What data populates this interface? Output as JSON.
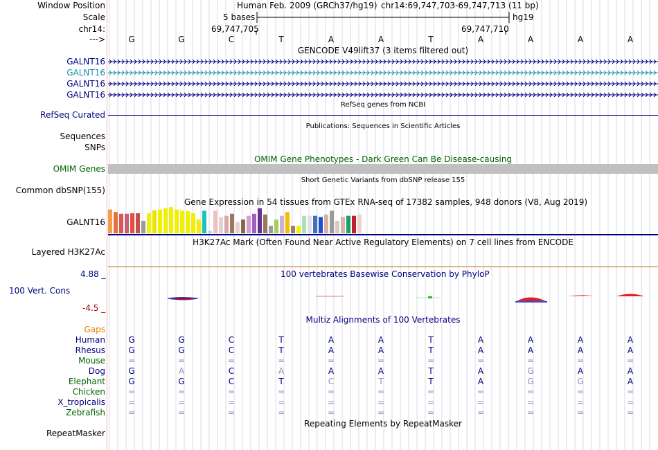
{
  "header": {
    "window_position_label": "Window Position",
    "scale_label": "Scale",
    "chrom_label": "chr14:",
    "arrow_label": "--->",
    "assembly_title": "Human Feb. 2009 (GRCh37/hg19)",
    "region": "chr14:69,747,703-69,747,713 (11 bp)",
    "scale_text": "5 bases",
    "scale_db": "hg19",
    "coord_left": "69,747,705",
    "coord_right": "69,747,710",
    "bases": [
      "G",
      "G",
      "C",
      "T",
      "A",
      "A",
      "T",
      "A",
      "A",
      "A",
      "A"
    ]
  },
  "tracks": {
    "gencode_title": "GENCODE V49lift37 (3 items filtered out)",
    "gencode_items": [
      {
        "label": "GALNT16",
        "color": "#000080"
      },
      {
        "label": "GALNT16",
        "color": "#1a8fb0"
      },
      {
        "label": "GALNT16",
        "color": "#000080"
      },
      {
        "label": "GALNT16",
        "color": "#000080"
      }
    ],
    "refseq_title": "RefSeq genes from NCBI",
    "refseq_label": "RefSeq Curated",
    "publications_title": "Publications: Sequences in Scientific Articles",
    "sequences_label": "Sequences",
    "snps_label": "SNPs",
    "omim_title": "OMIM Gene Phenotypes - Dark Green Can Be Disease-causing",
    "omim_label": "OMIM Genes",
    "dbsnp_title": "Short Genetic Variants from dbSNP release 155",
    "dbsnp_label": "Common dbSNP(155)",
    "gtex_title": "Gene Expression in 54 tissues from GTEx RNA-seq of 17382 samples, 948 donors (V8, Aug 2019)",
    "gtex_label": "GALNT16",
    "h3k27_title": "H3K27Ac Mark (Often Found Near Active Regulatory Elements) on 7 cell lines from ENCODE",
    "h3k27_label": "Layered H3K27Ac",
    "phylop_title": "100 vertebrates Basewise Conservation by PhyloP",
    "phylop_label": "100 Vert. Cons",
    "phylop_max": "4.88 _",
    "phylop_min": "-4.5 _",
    "multiz_title": "Multiz Alignments of 100 Vertebrates",
    "gaps_label": "Gaps",
    "repeat_title": "Repeating Elements by RepeatMasker",
    "repeat_label": "RepeatMasker"
  },
  "gtex_bars": [
    {
      "c": "#f39c4a",
      "v": 0.95
    },
    {
      "c": "#e8703a",
      "v": 0.85
    },
    {
      "c": "#d35a5a",
      "v": 0.78
    },
    {
      "c": "#c85f7d",
      "v": 0.78
    },
    {
      "c": "#e0503c",
      "v": 0.8
    },
    {
      "c": "#c94c4c",
      "v": 0.8
    },
    {
      "c": "#9a9a9a",
      "v": 0.5
    },
    {
      "c": "#f0f000",
      "v": 0.8
    },
    {
      "c": "#e6e600",
      "v": 0.92
    },
    {
      "c": "#f0f000",
      "v": 0.95
    },
    {
      "c": "#f0f000",
      "v": 1.0
    },
    {
      "c": "#f0f000",
      "v": 1.05
    },
    {
      "c": "#f0f000",
      "v": 0.95
    },
    {
      "c": "#f0f000",
      "v": 0.9
    },
    {
      "c": "#f0f000",
      "v": 0.88
    },
    {
      "c": "#f0f000",
      "v": 0.8
    },
    {
      "c": "#f0f000",
      "v": 0.55
    },
    {
      "c": "#20c0c0",
      "v": 0.9
    },
    {
      "c": "#b0d8f0",
      "v": 0.1
    },
    {
      "c": "#f0c0c0",
      "v": 0.9
    },
    {
      "c": "#e8d0d0",
      "v": 0.65
    },
    {
      "c": "#d8a8a8",
      "v": 0.7
    },
    {
      "c": "#9a7860",
      "v": 0.78
    },
    {
      "c": "#e8d0d0",
      "v": 0.45
    },
    {
      "c": "#8a6850",
      "v": 0.55
    },
    {
      "c": "#d0a0d0",
      "v": 0.7
    },
    {
      "c": "#a060c0",
      "v": 0.78
    },
    {
      "c": "#6a3090",
      "v": 1.0
    },
    {
      "c": "#9a7860",
      "v": 0.75
    },
    {
      "c": "#9a9a9a",
      "v": 0.3
    },
    {
      "c": "#a0d060",
      "v": 0.55
    },
    {
      "c": "#d0b0d0",
      "v": 0.7
    },
    {
      "c": "#f0c000",
      "v": 0.85
    },
    {
      "c": "#a08060",
      "v": 0.3
    },
    {
      "c": "#f0f000",
      "v": 0.3
    },
    {
      "c": "#b0e0b0",
      "v": 0.7
    },
    {
      "c": "#e0e0e0",
      "v": 0.7
    },
    {
      "c": "#4070c0",
      "v": 0.7
    },
    {
      "c": "#2050d0",
      "v": 0.65
    },
    {
      "c": "#d8b0a8",
      "v": 0.75
    },
    {
      "c": "#9a9a9a",
      "v": 0.9
    },
    {
      "c": "#e0c8c0",
      "v": 0.5
    },
    {
      "c": "#d0b8b0",
      "v": 0.65
    },
    {
      "c": "#20a060",
      "v": 0.7
    },
    {
      "c": "#c02030",
      "v": 0.7
    },
    {
      "c": "#f0d0d0",
      "v": 0.75
    }
  ],
  "alignment": [
    {
      "species": "Human",
      "color": "#000080",
      "bases": [
        "G",
        "G",
        "C",
        "T",
        "A",
        "A",
        "T",
        "A",
        "A",
        "A",
        "A"
      ],
      "faint": []
    },
    {
      "species": "Rhesus",
      "color": "#000080",
      "bases": [
        "G",
        "G",
        "C",
        "T",
        "A",
        "A",
        "T",
        "A",
        "A",
        "A",
        "A"
      ],
      "faint": []
    },
    {
      "species": "Mouse",
      "color": "#006400",
      "bases": [
        "=",
        "=",
        "=",
        "=",
        "=",
        "=",
        "=",
        "=",
        "=",
        "=",
        "="
      ],
      "faint": [
        0,
        1,
        2,
        3,
        4,
        5,
        6,
        7,
        8,
        9,
        10
      ]
    },
    {
      "species": "Dog",
      "color": "#000080",
      "bases": [
        "G",
        "A",
        "C",
        "A",
        "A",
        "A",
        "T",
        "A",
        "G",
        "A",
        "A"
      ],
      "faint": [
        1,
        3,
        8
      ]
    },
    {
      "species": "Elephant",
      "color": "#006400",
      "bases": [
        "G",
        "G",
        "C",
        "T",
        "C",
        "T",
        "T",
        "A",
        "G",
        "G",
        "A"
      ],
      "faint": [
        4,
        5,
        8,
        9
      ]
    },
    {
      "species": "Chicken",
      "color": "#006400",
      "bases": [
        "=",
        "=",
        "=",
        "=",
        "=",
        "=",
        "=",
        "=",
        "=",
        "=",
        "="
      ],
      "faint": [
        0,
        1,
        2,
        3,
        4,
        5,
        6,
        7,
        8,
        9,
        10
      ]
    },
    {
      "species": "X_tropicalis",
      "color": "#000080",
      "bases": [
        "=",
        "=",
        "=",
        "=",
        "=",
        "=",
        "=",
        "=",
        "=",
        "=",
        "="
      ],
      "faint": [
        0,
        1,
        2,
        3,
        4,
        5,
        6,
        7,
        8,
        9,
        10
      ]
    },
    {
      "species": "Zebrafish",
      "color": "#006400",
      "bases": [
        "=",
        "=",
        "=",
        "=",
        "=",
        "=",
        "=",
        "=",
        "=",
        "=",
        "="
      ],
      "faint": [
        0,
        1,
        2,
        3,
        4,
        5,
        6,
        7,
        8,
        9,
        10
      ]
    }
  ],
  "colors": {
    "track_title": "#000000",
    "omim_title": "#006400",
    "navy": "#000080",
    "gaps": "#e08000",
    "phylop_min": "#a00000",
    "h3k27_line": "#b06000",
    "omim_bar": "#c0c0c0"
  }
}
